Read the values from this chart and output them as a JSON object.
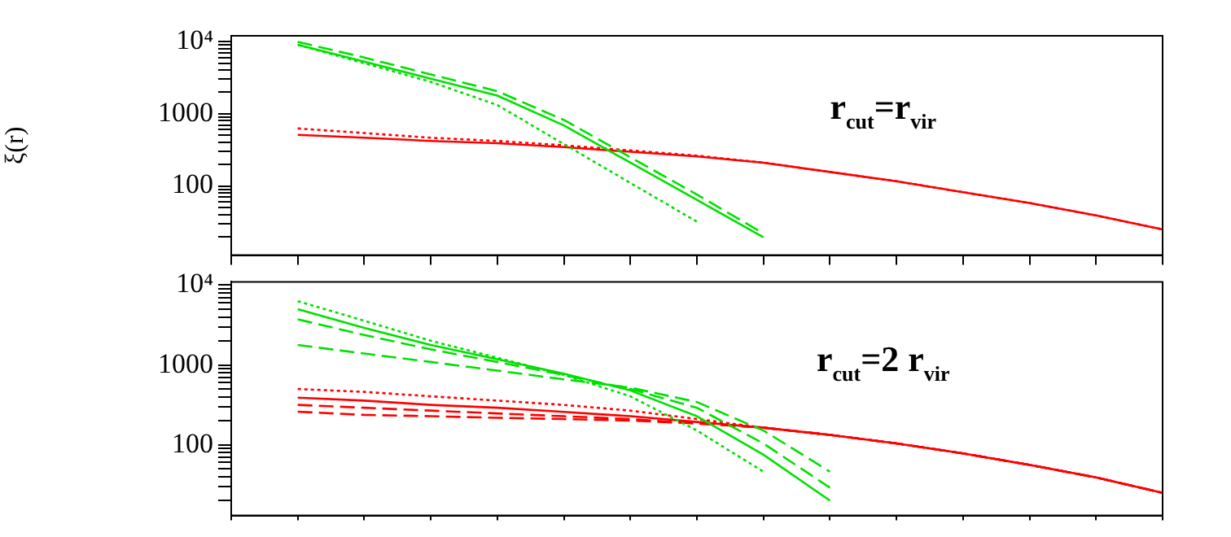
{
  "chart_data": [
    {
      "type": "line",
      "ylabel": "ξ(r)",
      "log": "y",
      "legend": false,
      "grid": false,
      "tick_labels": "y",
      "annotations": [
        "r$_{cut}$=r$_{vir}$"
      ],
      "categories": [
        null,
        null,
        null,
        null,
        null,
        null,
        null,
        null,
        null,
        null,
        null,
        null,
        null,
        null,
        null
      ],
      "ylim": [
        11,
        12000
      ],
      "yticks": [
        {
          "value": 20,
          "label": null
        },
        {
          "value": 30,
          "label": null
        },
        {
          "value": 40,
          "label": null
        },
        {
          "value": 50,
          "label": null
        },
        {
          "value": 60,
          "label": null
        },
        {
          "value": 70,
          "label": null
        },
        {
          "value": 80,
          "label": null
        },
        {
          "value": 90,
          "label": null
        },
        {
          "value": 100,
          "label": "100"
        },
        {
          "value": 200,
          "label": null
        },
        {
          "value": 300,
          "label": null
        },
        {
          "value": 400,
          "label": null
        },
        {
          "value": 500,
          "label": null
        },
        {
          "value": 600,
          "label": null
        },
        {
          "value": 700,
          "label": null
        },
        {
          "value": 800,
          "label": null
        },
        {
          "value": 900,
          "label": null
        },
        {
          "value": 1000,
          "label": "1000"
        },
        {
          "value": 2000,
          "label": null
        },
        {
          "value": 3000,
          "label": null
        },
        {
          "value": 4000,
          "label": null
        },
        {
          "value": 5000,
          "label": null
        },
        {
          "value": 6000,
          "label": null
        },
        {
          "value": 7000,
          "label": null
        },
        {
          "value": 8000,
          "label": null
        },
        {
          "value": 9000,
          "label": null
        },
        {
          "value": 10000,
          "label": "10⁴"
        }
      ],
      "series": [
        {
          "color": "#00e000",
          "line_style": "dashed",
          "values": [
            null,
            9900,
            6000,
            3500,
            2050,
            820,
            250,
            76,
            22,
            null,
            null,
            null,
            null,
            null,
            null
          ]
        },
        {
          "color": "#00e000",
          "line_style": "solid",
          "values": [
            null,
            9000,
            5250,
            3050,
            1780,
            690,
            210,
            64,
            19.5,
            null,
            null,
            null,
            null,
            null,
            null
          ]
        },
        {
          "color": "#00e000",
          "line_style": "dotted",
          "values": [
            null,
            9000,
            5000,
            2760,
            1320,
            380,
            110,
            32,
            null,
            null,
            null,
            null,
            null,
            null,
            null
          ]
        },
        {
          "color": "#ff0000",
          "line_style": "solid",
          "values": [
            null,
            510,
            465,
            420,
            390,
            345,
            297,
            256,
            210,
            156,
            116,
            82,
            58,
            39,
            25
          ]
        },
        {
          "color": "#ff0000",
          "line_style": "dotted",
          "values": [
            null,
            625,
            540,
            465,
            420,
            365,
            310,
            263,
            210,
            156,
            116,
            82,
            58,
            39,
            25
          ]
        }
      ]
    },
    {
      "type": "line",
      "log": "y",
      "legend": false,
      "grid": false,
      "tick_labels": "y",
      "annotations": [
        "r$_{cut}$=2 r$_{vir}$"
      ],
      "categories": [
        null,
        null,
        null,
        null,
        null,
        null,
        null,
        null,
        null,
        null,
        null,
        null,
        null,
        null,
        null
      ],
      "ylim": [
        13,
        11000
      ],
      "yticks": [
        {
          "value": 20,
          "label": null
        },
        {
          "value": 30,
          "label": null
        },
        {
          "value": 40,
          "label": null
        },
        {
          "value": 50,
          "label": null
        },
        {
          "value": 60,
          "label": null
        },
        {
          "value": 70,
          "label": null
        },
        {
          "value": 80,
          "label": null
        },
        {
          "value": 90,
          "label": null
        },
        {
          "value": 100,
          "label": "100"
        },
        {
          "value": 200,
          "label": null
        },
        {
          "value": 300,
          "label": null
        },
        {
          "value": 400,
          "label": null
        },
        {
          "value": 500,
          "label": null
        },
        {
          "value": 600,
          "label": null
        },
        {
          "value": 700,
          "label": null
        },
        {
          "value": 800,
          "label": null
        },
        {
          "value": 900,
          "label": null
        },
        {
          "value": 1000,
          "label": "1000"
        },
        {
          "value": 2000,
          "label": null
        },
        {
          "value": 3000,
          "label": null
        },
        {
          "value": 4000,
          "label": null
        },
        {
          "value": 5000,
          "label": null
        },
        {
          "value": 6000,
          "label": null
        },
        {
          "value": 7000,
          "label": null
        },
        {
          "value": 8000,
          "label": null
        },
        {
          "value": 9000,
          "label": null
        },
        {
          "value": 10000,
          "label": "10⁴"
        }
      ],
      "series": [
        {
          "color": "#00e000",
          "line_style": "solid",
          "values": [
            null,
            5000,
            2910,
            1780,
            1180,
            780,
            480,
            228,
            75,
            20,
            null,
            null,
            null,
            null,
            null
          ]
        },
        {
          "color": "#00e000",
          "line_style": "dotted",
          "values": [
            null,
            6300,
            3580,
            2010,
            1230,
            750,
            405,
            151,
            46,
            null,
            null,
            null,
            null,
            null,
            null
          ]
        },
        {
          "color": "#00e000",
          "line_style": "dashed",
          "values": [
            null,
            3730,
            2370,
            1570,
            1090,
            750,
            500,
            291,
            104,
            29,
            null,
            null,
            null,
            null,
            null
          ]
        },
        {
          "color": "#00e000",
          "line_style": "dashed",
          "values": [
            null,
            1780,
            1390,
            1090,
            850,
            660,
            520,
            343,
            151,
            46,
            null,
            null,
            null,
            null,
            null
          ]
        },
        {
          "color": "#ff0000",
          "line_style": "solid",
          "values": [
            null,
            390,
            358,
            316,
            291,
            258,
            228,
            193,
            164,
            133,
            104,
            78,
            56,
            39,
            25
          ]
        },
        {
          "color": "#ff0000",
          "line_style": "dotted",
          "values": [
            null,
            500,
            460,
            405,
            358,
            316,
            268,
            210,
            164,
            133,
            104,
            78,
            56,
            39,
            25
          ]
        },
        {
          "color": "#ff0000",
          "line_style": "dashed",
          "values": [
            null,
            316,
            291,
            268,
            247,
            228,
            210,
            185,
            164,
            133,
            104,
            78,
            56,
            39,
            25
          ]
        },
        {
          "color": "#ff0000",
          "line_style": "dashed",
          "values": [
            null,
            260,
            237,
            228,
            218,
            210,
            201,
            185,
            164,
            133,
            104,
            78,
            56,
            39,
            25
          ]
        }
      ]
    }
  ]
}
